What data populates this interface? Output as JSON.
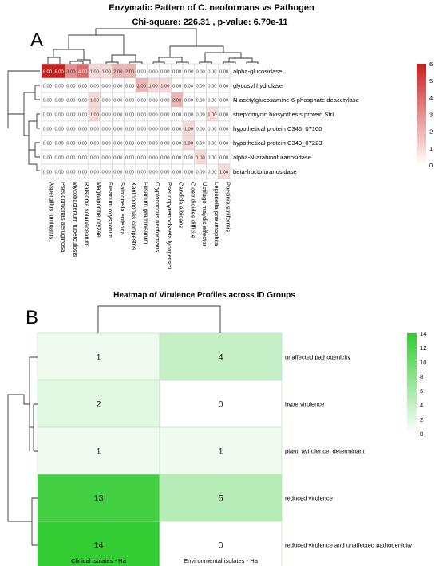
{
  "panels": {
    "a_letter": "A",
    "b_letter": "B"
  },
  "chart_data": [
    {
      "type": "heatmap",
      "title": "Enzymatic Pattern of C. neoformans vs Pathogen",
      "subtitle": "Chi-square: 226.31 , p-value: 6.79e-11",
      "rows": [
        "alpha-glucosidase",
        "glycosyl hydrolase",
        "N-acetylglucosamine-6-phosphate deacetylase",
        "streptomycin biosynthesis protein StrI",
        "hypothetical protein C346_07100",
        "hypothetical protein C349_07223",
        "alpha-N-arabinofuranosidase",
        "beta-fructofuranosidase"
      ],
      "columns": [
        "Aspergillus fumigatus",
        "Pseudomonas aeruginosa",
        "Mycobacterium tuberculosis",
        "Ralstonia solanacearum",
        "Magnaporthe oryzae",
        "Fusarium oxysporum",
        "Salmonella enterica",
        "Xanthomonas campestris",
        "Fusarium graminearum",
        "Cryptococcus neoformans",
        "Pseudopyrenochaeta lycopersici",
        "Candida albicans",
        "Clostridioides difficile",
        "Ustilago maydis effector",
        "Legionella pneumophila",
        "Puccinia striiformis"
      ],
      "values": [
        [
          6,
          6,
          3,
          4,
          1,
          1,
          2,
          2,
          0,
          0,
          0,
          0,
          0,
          0,
          0,
          0
        ],
        [
          0,
          0,
          0,
          0,
          0,
          0,
          0,
          0,
          2,
          1,
          1,
          0,
          0,
          0,
          0,
          0
        ],
        [
          0,
          0,
          0,
          0,
          1,
          0,
          0,
          0,
          0,
          0,
          0,
          2,
          0,
          0,
          0,
          0
        ],
        [
          0,
          0,
          0,
          0,
          1,
          0,
          0,
          0,
          0,
          0,
          0,
          0,
          0,
          0,
          1,
          0
        ],
        [
          0,
          0,
          0,
          0,
          0,
          0,
          0,
          0,
          0,
          0,
          0,
          0,
          1,
          0,
          0,
          0
        ],
        [
          0,
          0,
          0,
          0,
          0,
          0,
          0,
          0,
          0,
          0,
          0,
          0,
          1,
          0,
          0,
          0
        ],
        [
          0,
          0,
          0,
          0,
          0,
          0,
          0,
          0,
          0,
          0,
          0,
          0,
          0,
          1,
          0,
          0
        ],
        [
          0,
          0,
          0,
          0,
          0,
          0,
          0,
          0,
          0,
          0,
          0,
          0,
          0,
          0,
          0,
          1
        ]
      ],
      "cell_labels": [
        [
          "6.00",
          "6.00",
          "3.00",
          "4.00",
          "1.00",
          "1.00",
          "2.00",
          "2.00",
          "0.00",
          "0.00",
          "0.00",
          "0.00",
          "0.00",
          "0.00",
          "0.00",
          "0.00"
        ],
        [
          "0.00",
          "0.00",
          "0.00",
          "0.00",
          "0.00",
          "0.00",
          "0.00",
          "0.00",
          "2.00",
          "1.00",
          "1.00",
          "0.00",
          "0.00",
          "0.00",
          "0.00",
          "0.00"
        ],
        [
          "0.00",
          "0.00",
          "0.00",
          "0.00",
          "1.00",
          "0.00",
          "0.00",
          "0.00",
          "0.00",
          "0.00",
          "0.00",
          "2.00",
          "0.00",
          "0.00",
          "0.00",
          "0.00"
        ],
        [
          "0.00",
          "0.00",
          "0.00",
          "0.00",
          "1.00",
          "0.00",
          "0.00",
          "0.00",
          "0.00",
          "0.00",
          "0.00",
          "0.00",
          "0.00",
          "0.00",
          "1.00",
          "0.00"
        ],
        [
          "0.00",
          "0.00",
          "0.00",
          "0.00",
          "0.00",
          "0.00",
          "0.00",
          "0.00",
          "0.00",
          "0.00",
          "0.00",
          "0.00",
          "1.00",
          "0.00",
          "0.00",
          "0.00"
        ],
        [
          "0.00",
          "0.00",
          "0.00",
          "0.00",
          "0.00",
          "0.00",
          "0.00",
          "0.00",
          "0.00",
          "0.00",
          "0.00",
          "0.00",
          "1.00",
          "0.00",
          "0.00",
          "0.00"
        ],
        [
          "0.00",
          "0.00",
          "0.00",
          "0.00",
          "0.00",
          "0.00",
          "0.00",
          "0.00",
          "0.00",
          "0.00",
          "0.00",
          "0.00",
          "0.00",
          "1.00",
          "0.00",
          "0.00"
        ],
        [
          "0.00",
          "0.00",
          "0.00",
          "0.00",
          "0.00",
          "0.00",
          "0.00",
          "0.00",
          "0.00",
          "0.00",
          "0.00",
          "0.00",
          "0.00",
          "0.00",
          "0.00",
          "1.00"
        ]
      ],
      "color_scale": {
        "min": 0,
        "max": 6,
        "low_color": "#ffffff",
        "high_color": "#c62020",
        "ticks": [
          "0",
          "1",
          "2",
          "3",
          "4",
          "5",
          "6"
        ]
      },
      "dendrograms": {
        "rows": true,
        "columns": true
      },
      "legend_placement": "right"
    },
    {
      "type": "heatmap",
      "title": "Heatmap of Virulence Profiles across ID Groups",
      "rows": [
        "unaffected pathogenicity",
        "hypervirulence",
        "plant_avirulence_determinant",
        "reduced virulence",
        "reduced virulence and unaffected pathogenicity"
      ],
      "columns": [
        "Clinical isolates - Ha",
        "Environmental isolates - Ha"
      ],
      "values": [
        [
          1,
          4
        ],
        [
          2,
          0
        ],
        [
          1,
          1
        ],
        [
          13,
          5
        ],
        [
          14,
          0
        ]
      ],
      "cell_labels": [
        [
          "1",
          "4"
        ],
        [
          "2",
          "0"
        ],
        [
          "1",
          "1"
        ],
        [
          "13",
          "5"
        ],
        [
          "14",
          "0"
        ]
      ],
      "color_scale": {
        "min": 0,
        "max": 14,
        "low_color": "#ffffff",
        "high_color": "#33cc33",
        "ticks": [
          "0",
          "2",
          "4",
          "6",
          "8",
          "10",
          "12",
          "14"
        ]
      },
      "dendrograms": {
        "rows": true,
        "columns": true
      },
      "legend_placement": "right"
    }
  ]
}
